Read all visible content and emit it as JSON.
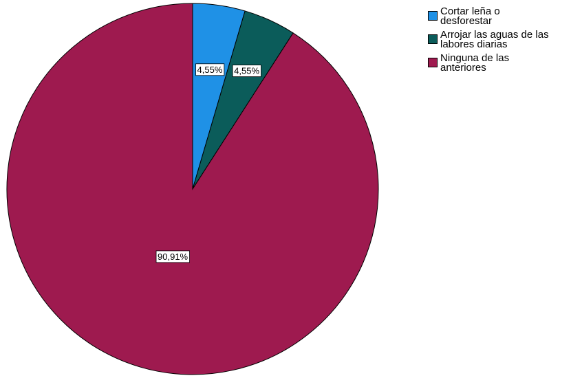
{
  "chart_data": {
    "type": "pie",
    "title": "",
    "start_angle_deg": 0,
    "direction": "clockwise",
    "slices": [
      {
        "label": "Cortar leña o desforestar",
        "legend_lines": [
          "Cortar leña o",
          "desforestar"
        ],
        "value": 4.55,
        "display": "4,55%",
        "color": "#1f91e6"
      },
      {
        "label": "Arrojar las aguas de las labores diarias",
        "legend_lines": [
          "Arrojar las aguas de las",
          "labores diarias"
        ],
        "value": 4.55,
        "display": "4,55%",
        "color": "#0b5c5a"
      },
      {
        "label": "Ninguna de las anteriores",
        "legend_lines": [
          "Ninguna de las",
          "anteriores"
        ],
        "value": 90.91,
        "display": "90,91%",
        "color": "#9e1a4f"
      }
    ],
    "legend_position": "top-right"
  }
}
